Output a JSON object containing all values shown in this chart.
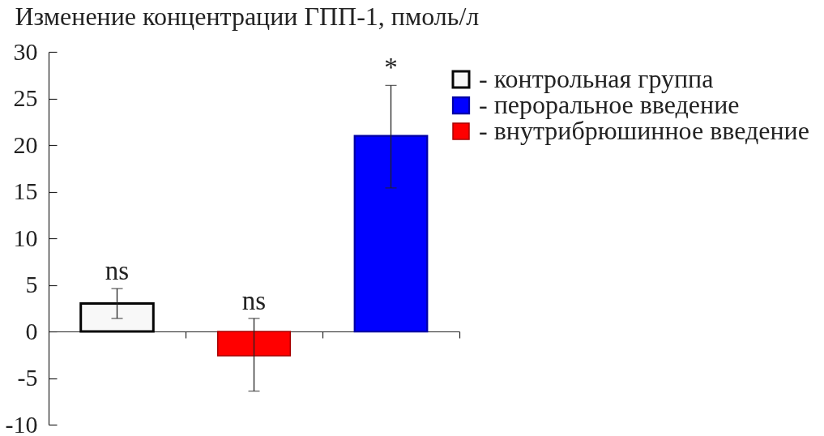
{
  "chart_data": {
    "type": "bar",
    "ylabel": "Изменение концентрации ГПП-1, пмоль/л",
    "categories": [
      null,
      null,
      null
    ],
    "series": [
      {
        "name": "- контрольная группа",
        "color": "#f8f8f8",
        "values": [
          3,
          null,
          null
        ],
        "errors": [
          [
            1.4,
            4.6
          ],
          null,
          null
        ]
      },
      {
        "name": "- пероральное введение",
        "color": "#0000ff",
        "values": [
          null,
          null,
          21
        ],
        "errors": [
          null,
          null,
          [
            15.4,
            26.4
          ]
        ]
      },
      {
        "name": "- внутрибрюшинное введение",
        "color": "#ff0000",
        "values": [
          null,
          -2.6,
          null
        ],
        "errors": [
          null,
          [
            -6.4,
            1.4
          ],
          null
        ]
      }
    ],
    "ylim": [
      -10,
      30
    ],
    "yticks": [
      -10,
      -5,
      0,
      5,
      10,
      15,
      20,
      25,
      30
    ],
    "annotations": [
      "ns",
      "ns",
      "*"
    ],
    "legend": "top right",
    "tick_labels": "y"
  }
}
